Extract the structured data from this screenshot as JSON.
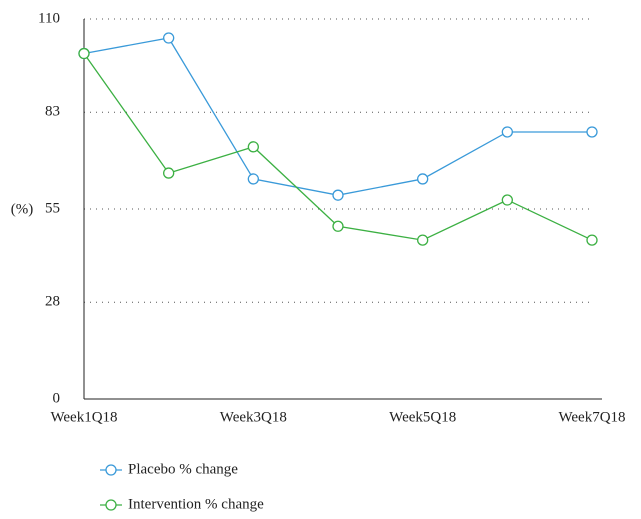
{
  "chart_data": {
    "type": "line",
    "y_label": "(%)",
    "categories": [
      "Week1Q18",
      null,
      "Week3Q18",
      null,
      "Week5Q18",
      null,
      "Week7Q18"
    ],
    "series": [
      {
        "name": "Placebo % change",
        "color": "#3a9ad9",
        "values": [
          100,
          104.5,
          63.7,
          59,
          63.7,
          77.3,
          77.3
        ]
      },
      {
        "name": "Intervention % change",
        "color": "#3cb043",
        "values": [
          100,
          65.4,
          73,
          50,
          46,
          57.6,
          46
        ]
      }
    ],
    "ylim": [
      0,
      110
    ],
    "yticks": [
      0,
      28,
      55,
      83,
      110
    ],
    "grid": true
  }
}
